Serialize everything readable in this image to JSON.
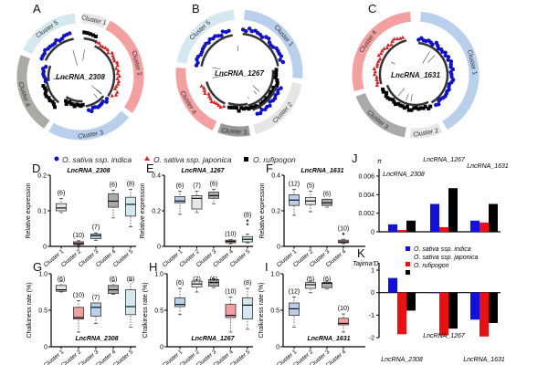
{
  "panel_letters": [
    "A",
    "B",
    "C",
    "D",
    "E",
    "F",
    "G",
    "H",
    "I",
    "J",
    "K"
  ],
  "colors": {
    "indica": "#1010d0",
    "japonica": "#e02020",
    "rufipogon": "#000000",
    "cluster_light_gray": "#e6e6e6",
    "cluster_pink": "#f4a0a0",
    "cluster_light_blue": "#b8d0ec",
    "cluster_gray": "#aaaaa6",
    "cluster_pale_blue": "#d3e8ef"
  },
  "legend": {
    "indica": "O. sativa ssp. indica",
    "japonica": "O. sativa ssp. japonica",
    "rufipogon": "O. rufipogon"
  },
  "trees": [
    {
      "letter": "A",
      "gene": "LncRNA_2308",
      "clusters": [
        {
          "label": "Cluster 1",
          "color": "#e6e6e6"
        },
        {
          "label": "Cluster 2",
          "color": "#f4a0a0"
        },
        {
          "label": "Cluster 3",
          "color": "#b8d0ec"
        },
        {
          "label": "Cluster 4",
          "color": "#aaaaa6"
        },
        {
          "label": "Cluster 5",
          "color": "#d3e8ef"
        }
      ]
    },
    {
      "letter": "B",
      "gene": "LncRNA_1267",
      "clusters": [
        {
          "label": "Cluster 1",
          "color": "#b8d0ec"
        },
        {
          "label": "Cluster 2",
          "color": "#e6e6e6"
        },
        {
          "label": "Cluster 3",
          "color": "#999999"
        },
        {
          "label": "Cluster 4",
          "color": "#f4a0a0"
        },
        {
          "label": "Cluster 5",
          "color": "#d3e8ef"
        }
      ]
    },
    {
      "letter": "C",
      "gene": "LncRNA_1631",
      "clusters": [
        {
          "label": "Cluster 1",
          "color": "#b8d0ec"
        },
        {
          "label": "Cluster 2",
          "color": "#e6e6e6"
        },
        {
          "label": "Cluster 3",
          "color": "#aaaaaa"
        },
        {
          "label": "Cluster 4",
          "color": "#f4a0a0"
        }
      ]
    }
  ],
  "chart_data": [
    {
      "type": "box",
      "letter": "D",
      "title": "LncRNA_2308",
      "ylabel": "Relative expression",
      "ylim": [
        0,
        0.2
      ],
      "yticks": [
        "0",
        "0.1",
        "0.2"
      ],
      "ytick_values": [
        0,
        0.1,
        0.2
      ],
      "boxes": [
        {
          "label": "Cluster 1",
          "n": "(6)",
          "min": 0.095,
          "q1": 0.1,
          "median": 0.108,
          "q3": 0.12,
          "max": 0.135,
          "color": "#e6e6e6"
        },
        {
          "label": "Cluster 2",
          "n": "(10)",
          "min": 0.003,
          "q1": 0.005,
          "median": 0.008,
          "q3": 0.013,
          "max": 0.016,
          "color": "#d88a8a"
        },
        {
          "label": "Cluster 3",
          "n": "(7)",
          "min": 0.017,
          "q1": 0.022,
          "median": 0.03,
          "q3": 0.035,
          "max": 0.038,
          "color": "#b8d0ec"
        },
        {
          "label": "Cluster 4",
          "n": "(6)",
          "min": 0.08,
          "q1": 0.11,
          "median": 0.127,
          "q3": 0.148,
          "max": 0.158,
          "color": "#aaaaa6"
        },
        {
          "label": "Cluster 5",
          "n": "(8)",
          "min": 0.055,
          "q1": 0.085,
          "median": 0.118,
          "q3": 0.138,
          "max": 0.16,
          "color": "#d3e8ef"
        }
      ]
    },
    {
      "type": "box",
      "letter": "E",
      "title": "LncRNA_1267",
      "ylabel": "Relative expression",
      "ylim": [
        0,
        0.4
      ],
      "yticks": [
        "0",
        "0.2",
        "0.4"
      ],
      "ytick_values": [
        0,
        0.2,
        0.4
      ],
      "boxes": [
        {
          "label": "Cluster 1",
          "n": "(6)",
          "min": 0.18,
          "q1": 0.245,
          "median": 0.255,
          "q3": 0.28,
          "max": 0.31,
          "color": "#b8d0ec"
        },
        {
          "label": "Cluster 2",
          "n": "(7)",
          "min": 0.19,
          "q1": 0.21,
          "median": 0.27,
          "q3": 0.285,
          "max": 0.31,
          "color": "#e6e6e6"
        },
        {
          "label": "Cluster 3",
          "n": "(6)",
          "min": 0.24,
          "q1": 0.27,
          "median": 0.285,
          "q3": 0.305,
          "max": 0.32,
          "color": "#aaaaaa"
        },
        {
          "label": "Cluster 4",
          "n": "(10)",
          "min": 0.015,
          "q1": 0.02,
          "median": 0.028,
          "q3": 0.035,
          "max": 0.038,
          "color": "#d88a8a"
        },
        {
          "label": "Cluster 5",
          "n": "(8)",
          "min": 0.02,
          "q1": 0.025,
          "median": 0.04,
          "q3": 0.055,
          "max": 0.07,
          "outliers": [
            0.125,
            0.145
          ],
          "color": "#d3e8ef"
        }
      ]
    },
    {
      "type": "box",
      "letter": "F",
      "title": "LncRNA_1631",
      "ylabel": "Relative expression",
      "ylim": [
        0,
        0.4
      ],
      "yticks": [
        "0",
        "0.2",
        "0.4"
      ],
      "ytick_values": [
        0,
        0.2,
        0.4
      ],
      "boxes": [
        {
          "label": "Cluster 1",
          "n": "(12)",
          "min": 0.175,
          "q1": 0.23,
          "median": 0.26,
          "q3": 0.29,
          "max": 0.32,
          "color": "#b8d0ec"
        },
        {
          "label": "Cluster 2",
          "n": "(5)",
          "min": 0.195,
          "q1": 0.235,
          "median": 0.255,
          "q3": 0.275,
          "max": 0.31,
          "color": "#e6e6e6"
        },
        {
          "label": "Cluster 3",
          "n": "(6)",
          "min": 0.22,
          "q1": 0.23,
          "median": 0.245,
          "q3": 0.265,
          "max": 0.265,
          "color": "#aaaaaa"
        },
        {
          "label": "Cluster 4",
          "n": "(10)",
          "min": 0.015,
          "q1": 0.02,
          "median": 0.025,
          "q3": 0.035,
          "max": 0.04,
          "outliers": [
            0.07
          ],
          "color": "#d88a8a"
        }
      ]
    },
    {
      "type": "box",
      "letter": "G",
      "title": "LncRNA_2308",
      "ylabel": "Chalkiness rate (%)",
      "ylim": [
        0,
        1.0
      ],
      "yticks": [
        "0",
        "0.5",
        "1.0"
      ],
      "ytick_values": [
        0,
        0.5,
        1.0
      ],
      "boxes": [
        {
          "label": "Cluster 1",
          "n": "(6)",
          "min": 0.75,
          "q1": 0.76,
          "median": 0.78,
          "q3": 0.84,
          "max": 0.9,
          "color": "#e6e6e6"
        },
        {
          "label": "Cluster 2",
          "n": "(10)",
          "min": 0.2,
          "q1": 0.38,
          "median": 0.4,
          "q3": 0.54,
          "max": 0.63,
          "color": "#f4a0a0"
        },
        {
          "label": "Cluster 3",
          "n": "(7)",
          "min": 0.32,
          "q1": 0.42,
          "median": 0.54,
          "q3": 0.6,
          "max": 0.6,
          "color": "#b8d0ec"
        },
        {
          "label": "Cluster 4",
          "n": "(6)",
          "min": 0.72,
          "q1": 0.73,
          "median": 0.78,
          "q3": 0.84,
          "max": 0.9,
          "color": "#aaaaa6"
        },
        {
          "label": "Cluster 5",
          "n": "(8)",
          "min": 0.27,
          "q1": 0.44,
          "median": 0.55,
          "q3": 0.78,
          "max": 0.91,
          "color": "#d3e8ef"
        }
      ]
    },
    {
      "type": "box",
      "letter": "H",
      "title": "LncRNA_1267",
      "ylabel": "Chalkiness rate (%)",
      "ylim": [
        0,
        1.0
      ],
      "yticks": [
        "0",
        "0.5",
        "1.0"
      ],
      "ytick_values": [
        0,
        0.5,
        1.0
      ],
      "boxes": [
        {
          "label": "Cluster 1",
          "n": "(6)",
          "min": 0.44,
          "q1": 0.55,
          "median": 0.58,
          "q3": 0.67,
          "max": 0.8,
          "color": "#b8d0ec"
        },
        {
          "label": "Cluster 2",
          "n": "(7)",
          "min": 0.75,
          "q1": 0.82,
          "median": 0.86,
          "q3": 0.9,
          "max": 0.92,
          "color": "#e6e6e6"
        },
        {
          "label": "Cluster 3",
          "n": "(6)",
          "min": 0.81,
          "q1": 0.83,
          "median": 0.88,
          "q3": 0.92,
          "max": 0.93,
          "color": "#aaaaaa"
        },
        {
          "label": "Cluster 4",
          "n": "(10)",
          "min": 0.2,
          "q1": 0.4,
          "median": 0.43,
          "q3": 0.58,
          "max": 0.68,
          "color": "#f4a0a0"
        },
        {
          "label": "Cluster 5",
          "n": "(8)",
          "min": 0.24,
          "q1": 0.38,
          "median": 0.57,
          "q3": 0.67,
          "max": 0.8,
          "color": "#d3e8ef"
        }
      ]
    },
    {
      "type": "box",
      "letter": "I",
      "title": "LncRNA_1631",
      "ylabel": "Chalkiness rate (%)",
      "ylim": [
        0,
        1.0
      ],
      "yticks": [
        "0",
        "0.5",
        "1.0"
      ],
      "ytick_values": [
        0,
        0.5,
        1.0
      ],
      "boxes": [
        {
          "label": "Cluster 1",
          "n": "(12)",
          "min": 0.27,
          "q1": 0.43,
          "median": 0.52,
          "q3": 0.6,
          "max": 0.68,
          "color": "#b8d0ec"
        },
        {
          "label": "Cluster 2",
          "n": "(5)",
          "min": 0.74,
          "q1": 0.8,
          "median": 0.85,
          "q3": 0.88,
          "max": 0.9,
          "color": "#e6e6e6"
        },
        {
          "label": "Cluster 3",
          "n": "(6)",
          "min": 0.79,
          "q1": 0.81,
          "median": 0.87,
          "q3": 0.88,
          "max": 0.9,
          "color": "#aaaaaa"
        },
        {
          "label": "Cluster 4",
          "n": "(10)",
          "min": 0.2,
          "q1": 0.3,
          "median": 0.32,
          "q3": 0.39,
          "max": 0.45,
          "color": "#f4a0a0"
        }
      ]
    },
    {
      "type": "bar",
      "letter": "J",
      "ylabel": "π",
      "ylim": [
        0,
        0.006
      ],
      "yticks": [
        "0",
        "0.002",
        "0.004",
        "0.006"
      ],
      "ytick_values": [
        0,
        0.002,
        0.004,
        0.006
      ],
      "categories": [
        "LncRNA_2308",
        "LncRNA_1267",
        "LncRNA_1631"
      ],
      "series": [
        {
          "name": "O. sativa ssp. indica",
          "color": "#1010e0",
          "values": [
            0.0008,
            0.003,
            0.0012
          ]
        },
        {
          "name": "O. sativa ssp. japonica",
          "color": "#ee1010",
          "values": [
            0.0002,
            0.0005,
            0.001
          ]
        },
        {
          "name": "O. rufipogon",
          "color": "#000000",
          "values": [
            0.0012,
            0.0047,
            0.003
          ]
        }
      ]
    },
    {
      "type": "bar",
      "letter": "K",
      "ylabel": "Tajima'D",
      "ylim": [
        -2,
        1
      ],
      "yticks": [
        "1",
        "0",
        "-1",
        "-2"
      ],
      "ytick_values": [
        1,
        0,
        -1,
        -2
      ],
      "categories": [
        "LncRNA_2308",
        "LncRNA_1267",
        "LncRNA_1631"
      ],
      "legend": [
        "O. sativa ssp. indica",
        "O. sativa ssp. japonica",
        "O. rufipogon"
      ],
      "series": [
        {
          "name": "O. sativa ssp. indica",
          "color": "#1010e0",
          "values": [
            0.65,
            -0.02,
            -1.2
          ]
        },
        {
          "name": "O. sativa ssp. japonica",
          "color": "#ee1010",
          "values": [
            -1.85,
            -1.9,
            -1.95
          ]
        },
        {
          "name": "O. rufipogon",
          "color": "#000000",
          "values": [
            -0.8,
            -1.6,
            -1.35
          ]
        }
      ]
    }
  ]
}
